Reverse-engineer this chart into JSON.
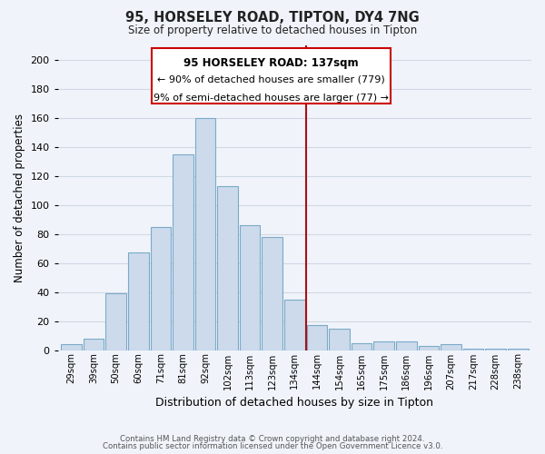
{
  "title": "95, HORSELEY ROAD, TIPTON, DY4 7NG",
  "subtitle": "Size of property relative to detached houses in Tipton",
  "xlabel": "Distribution of detached houses by size in Tipton",
  "ylabel": "Number of detached properties",
  "bar_labels": [
    "29sqm",
    "39sqm",
    "50sqm",
    "60sqm",
    "71sqm",
    "81sqm",
    "92sqm",
    "102sqm",
    "113sqm",
    "123sqm",
    "134sqm",
    "144sqm",
    "154sqm",
    "165sqm",
    "175sqm",
    "186sqm",
    "196sqm",
    "207sqm",
    "217sqm",
    "228sqm",
    "238sqm"
  ],
  "bar_heights": [
    4,
    8,
    39,
    67,
    85,
    135,
    160,
    113,
    86,
    78,
    35,
    17,
    15,
    5,
    6,
    6,
    3,
    4,
    1,
    1,
    1
  ],
  "bar_color": "#ccdaeb",
  "bar_edge_color": "#7aaac8",
  "grid_color": "#d0d8e4",
  "vline_x_index": 10.5,
  "vline_color": "#aa1111",
  "annotation_title": "95 HORSELEY ROAD: 137sqm",
  "annotation_line1": "← 90% of detached houses are smaller (779)",
  "annotation_line2": "9% of semi-detached houses are larger (77) →",
  "annotation_box_color": "#ffffff",
  "annotation_box_edge": "#cc0000",
  "ylim": [
    0,
    210
  ],
  "yticks": [
    0,
    20,
    40,
    60,
    80,
    100,
    120,
    140,
    160,
    180,
    200
  ],
  "footer1": "Contains HM Land Registry data © Crown copyright and database right 2024.",
  "footer2": "Contains public sector information licensed under the Open Government Licence v3.0.",
  "bg_color": "#f0f4fa"
}
